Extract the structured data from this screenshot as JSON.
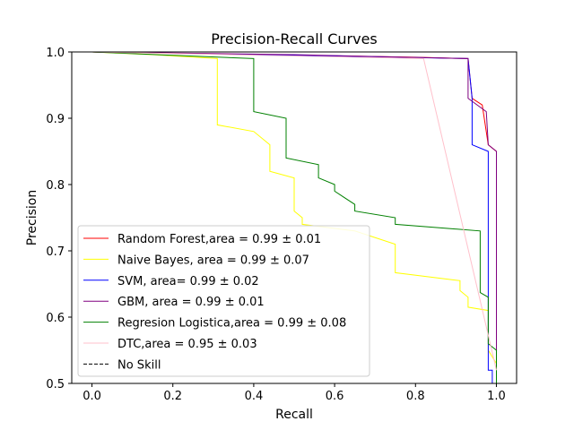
{
  "chart_data": {
    "type": "line",
    "title": "Precision-Recall Curves",
    "xlabel": "Recall",
    "ylabel": "Precision",
    "xlim": [
      -0.05,
      1.05
    ],
    "ylim": [
      0.5,
      1.0
    ],
    "xticks": [
      "0.0",
      "0.2",
      "0.4",
      "0.6",
      "0.8",
      "1.0"
    ],
    "yticks": [
      "0.5",
      "0.6",
      "0.7",
      "0.8",
      "0.9",
      "1.0"
    ],
    "grid": false,
    "legend_position": "lower-left",
    "series": [
      {
        "name": "Random Forest,area = 0.99 ± 0.01",
        "color": "#ff0000",
        "dash": false,
        "points": [
          [
            0,
            1.0
          ],
          [
            0.3,
            0.997
          ],
          [
            0.6,
            0.994
          ],
          [
            0.8,
            0.992
          ],
          [
            0.93,
            0.99
          ],
          [
            0.94,
            0.93
          ],
          [
            0.965,
            0.92
          ],
          [
            0.98,
            0.86
          ],
          [
            1.0,
            0.85
          ],
          [
            1.0,
            0.5
          ]
        ]
      },
      {
        "name": "Naive Bayes, area = 0.99 ± 0.07",
        "color": "#ffff00",
        "dash": false,
        "points": [
          [
            0,
            1.0
          ],
          [
            0.15,
            0.996
          ],
          [
            0.31,
            0.99
          ],
          [
            0.31,
            0.89
          ],
          [
            0.4,
            0.88
          ],
          [
            0.44,
            0.86
          ],
          [
            0.44,
            0.82
          ],
          [
            0.5,
            0.81
          ],
          [
            0.5,
            0.76
          ],
          [
            0.52,
            0.75
          ],
          [
            0.52,
            0.74
          ],
          [
            0.65,
            0.73
          ],
          [
            0.75,
            0.71
          ],
          [
            0.75,
            0.667
          ],
          [
            0.91,
            0.655
          ],
          [
            0.91,
            0.64
          ],
          [
            0.93,
            0.63
          ],
          [
            0.93,
            0.615
          ],
          [
            0.98,
            0.61
          ],
          [
            0.98,
            0.55
          ],
          [
            1.0,
            0.53
          ],
          [
            1.0,
            0.5
          ]
        ]
      },
      {
        "name": "SVM, area= 0.99 ± 0.02",
        "color": "#0000ff",
        "dash": false,
        "points": [
          [
            0,
            1.0
          ],
          [
            0.5,
            0.995
          ],
          [
            0.93,
            0.99
          ],
          [
            0.94,
            0.93
          ],
          [
            0.94,
            0.86
          ],
          [
            0.98,
            0.85
          ],
          [
            0.98,
            0.52
          ],
          [
            0.99,
            0.52
          ],
          [
            0.99,
            0.5
          ]
        ]
      },
      {
        "name": "GBM, area = 0.99 ± 0.01",
        "color": "#800080",
        "dash": false,
        "points": [
          [
            0,
            1.0
          ],
          [
            0.5,
            0.996
          ],
          [
            0.93,
            0.99
          ],
          [
            0.93,
            0.93
          ],
          [
            0.975,
            0.91
          ],
          [
            0.98,
            0.86
          ],
          [
            1.0,
            0.85
          ],
          [
            1.0,
            0.5
          ]
        ]
      },
      {
        "name": "Regresion Logistica,area = 0.99 ± 0.08",
        "color": "#008000",
        "dash": false,
        "points": [
          [
            0,
            1.0
          ],
          [
            0.2,
            0.995
          ],
          [
            0.4,
            0.99
          ],
          [
            0.4,
            0.91
          ],
          [
            0.48,
            0.9
          ],
          [
            0.48,
            0.84
          ],
          [
            0.56,
            0.83
          ],
          [
            0.56,
            0.81
          ],
          [
            0.6,
            0.8
          ],
          [
            0.6,
            0.79
          ],
          [
            0.65,
            0.77
          ],
          [
            0.65,
            0.76
          ],
          [
            0.75,
            0.75
          ],
          [
            0.75,
            0.74
          ],
          [
            0.96,
            0.73
          ],
          [
            0.96,
            0.637
          ],
          [
            0.98,
            0.63
          ],
          [
            0.98,
            0.56
          ],
          [
            1.0,
            0.55
          ],
          [
            1.0,
            0.5
          ]
        ]
      },
      {
        "name": "DTC,area = 0.95 ± 0.03",
        "color": "#ffc0cb",
        "dash": false,
        "points": [
          [
            0,
            1.0
          ],
          [
            0.82,
            0.99
          ],
          [
            1.0,
            0.52
          ]
        ]
      },
      {
        "name": "No Skill",
        "color": "#000000",
        "dash": true,
        "points": [
          [
            0,
            0.5
          ],
          [
            1.0,
            0.5
          ]
        ]
      }
    ]
  }
}
